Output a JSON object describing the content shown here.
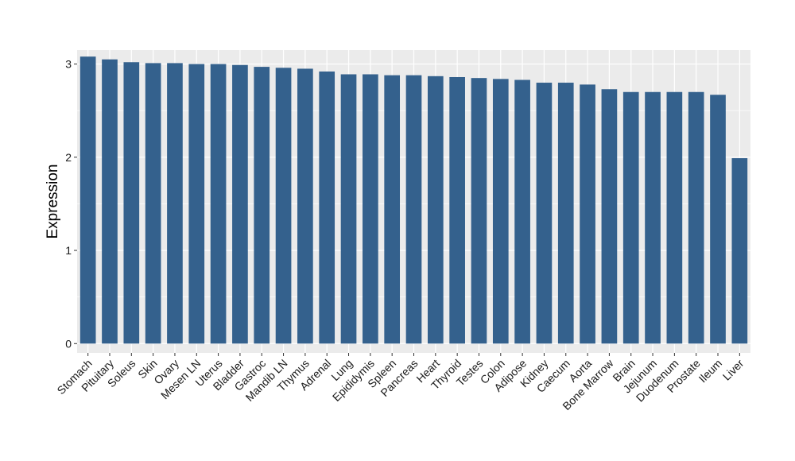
{
  "chart_data": {
    "type": "bar",
    "title": "",
    "xlabel": "",
    "ylabel": "Expression",
    "ylim": [
      -0.1,
      3.15
    ],
    "yticks": [
      0,
      1,
      2,
      3
    ],
    "grid": true,
    "legend": "none",
    "bar_color": "#34618D",
    "panel_color": "#EBEBEB",
    "categories": [
      "Stomach",
      "Pituitary",
      "Soleus",
      "Skin",
      "Ovary",
      "Mesen LN",
      "Uterus",
      "Bladder",
      "Gastroc",
      "Mandib LN",
      "Thymus",
      "Adrenal",
      "Lung",
      "Epididymis",
      "Spleen",
      "Pancreas",
      "Heart",
      "Thyroid",
      "Testes",
      "Colon",
      "Adipose",
      "Kidney",
      "Caecum",
      "Aorta",
      "Bone Marrow",
      "Brain",
      "Jejunum",
      "Duodenum",
      "Prostate",
      "Ileum",
      "Liver"
    ],
    "values": [
      3.08,
      3.05,
      3.02,
      3.01,
      3.01,
      3.0,
      3.0,
      2.99,
      2.97,
      2.96,
      2.95,
      2.92,
      2.89,
      2.89,
      2.88,
      2.88,
      2.87,
      2.86,
      2.85,
      2.84,
      2.83,
      2.8,
      2.8,
      2.78,
      2.73,
      2.7,
      2.7,
      2.7,
      2.7,
      2.67,
      1.99
    ]
  }
}
